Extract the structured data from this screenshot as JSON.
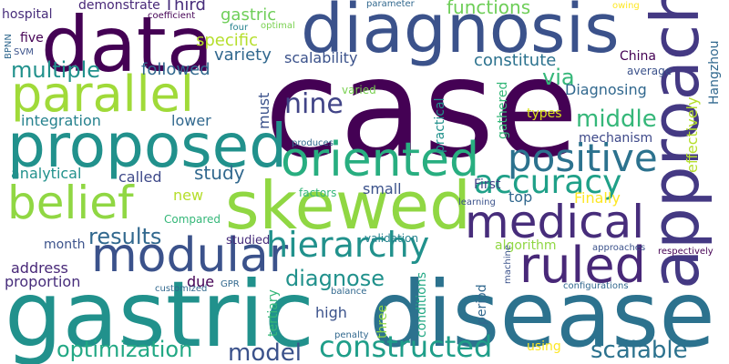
{
  "palette": {
    "purple": "#440154",
    "indigo": "#3b528b",
    "blue": "#31688e",
    "teal": "#21918c",
    "green": "#35b779",
    "lime": "#90d743",
    "yellow": "#fde725"
  },
  "words": [
    {
      "text": "case",
      "color": "#440154"
    },
    {
      "text": "gastric",
      "color": "#21918c"
    },
    {
      "text": "disease",
      "color": "#2c728e"
    },
    {
      "text": "diagnosis",
      "color": "#3b528b"
    },
    {
      "text": "data",
      "color": "#440154"
    },
    {
      "text": "approach",
      "color": "#443983"
    },
    {
      "text": "skewed",
      "color": "#90d743"
    },
    {
      "text": "proposed",
      "color": "#21918c"
    },
    {
      "text": "parallel",
      "color": "#a0da39"
    },
    {
      "text": "oriented",
      "color": "#28ae80"
    },
    {
      "text": "medical",
      "color": "#472d7b"
    },
    {
      "text": "modular",
      "color": "#3b528b"
    },
    {
      "text": "belief",
      "color": "#90d743"
    },
    {
      "text": "ruled",
      "color": "#482878"
    },
    {
      "text": "positive",
      "color": "#2c728e"
    },
    {
      "text": "accuracy",
      "color": "#1fa088"
    },
    {
      "text": "hierarchy",
      "color": "#21918c"
    },
    {
      "text": "constructed",
      "color": "#1f9e89"
    },
    {
      "text": "optimization",
      "color": "#22a884"
    },
    {
      "text": "model",
      "color": "#3b528b"
    },
    {
      "text": "scalable",
      "color": "#2c728e"
    },
    {
      "text": "results",
      "color": "#31688e"
    },
    {
      "text": "diagnose",
      "color": "#21918c"
    },
    {
      "text": "multiple",
      "color": "#21918c"
    },
    {
      "text": "specific",
      "color": "#b5de2b"
    },
    {
      "text": "study",
      "color": "#31688e"
    },
    {
      "text": "via",
      "color": "#35b779"
    },
    {
      "text": "middle",
      "color": "#35b779"
    },
    {
      "text": "nine",
      "color": "#414487"
    },
    {
      "text": "constitute",
      "color": "#2c728e"
    },
    {
      "text": "Diagnosing",
      "color": "#31688e"
    },
    {
      "text": "effectively",
      "color": "#b5de2b"
    },
    {
      "text": "Hangzhou",
      "color": "#31688e"
    },
    {
      "text": "variety",
      "color": "#31688e"
    },
    {
      "text": "scalability",
      "color": "#3b528b"
    },
    {
      "text": "followed",
      "color": "#31688e"
    },
    {
      "text": "gastric",
      "color": "#6ece58"
    },
    {
      "text": "functions",
      "color": "#6ece58"
    },
    {
      "text": "demonstrate",
      "color": "#482878"
    },
    {
      "text": "Third",
      "color": "#472d7b"
    },
    {
      "text": "hospital",
      "color": "#472d7b"
    },
    {
      "text": "five",
      "color": "#440154"
    },
    {
      "text": "must",
      "color": "#3b528b"
    },
    {
      "text": "lower",
      "color": "#31688e"
    },
    {
      "text": "integration",
      "color": "#26828e"
    },
    {
      "text": "analytical",
      "color": "#21918c"
    },
    {
      "text": "called",
      "color": "#3e4989"
    },
    {
      "text": "new",
      "color": "#b5de2b"
    },
    {
      "text": "factors",
      "color": "#35b779"
    },
    {
      "text": "small",
      "color": "#3b528b"
    },
    {
      "text": "First",
      "color": "#414487"
    },
    {
      "text": "top",
      "color": "#31688e"
    },
    {
      "text": "Finally",
      "color": "#fde725"
    },
    {
      "text": "practical",
      "color": "#21918c"
    },
    {
      "text": "gathered",
      "color": "#35b779"
    },
    {
      "text": "types",
      "color": "#d8e219"
    },
    {
      "text": "mechanism",
      "color": "#3e4989"
    },
    {
      "text": "China",
      "color": "#440154"
    },
    {
      "text": "average",
      "color": "#3b528b"
    },
    {
      "text": "varied",
      "color": "#7ad151"
    },
    {
      "text": "produces",
      "color": "#31688e"
    },
    {
      "text": "Compared",
      "color": "#35b779"
    },
    {
      "text": "month",
      "color": "#3b528b"
    },
    {
      "text": "studied",
      "color": "#472d7b"
    },
    {
      "text": "validation",
      "color": "#26828e"
    },
    {
      "text": "address",
      "color": "#482878"
    },
    {
      "text": "proportion",
      "color": "#472d7b"
    },
    {
      "text": "due",
      "color": "#440154"
    },
    {
      "text": "customized",
      "color": "#31688e"
    },
    {
      "text": "GPR",
      "color": "#31688e"
    },
    {
      "text": "tertiary",
      "color": "#35b779"
    },
    {
      "text": "high",
      "color": "#3b528b"
    },
    {
      "text": "three",
      "color": "#90d743"
    },
    {
      "text": "balance",
      "color": "#31688e"
    },
    {
      "text": "penalty",
      "color": "#31688e"
    },
    {
      "text": "conditions",
      "color": "#22a884"
    },
    {
      "text": "period",
      "color": "#31688e"
    },
    {
      "text": "using",
      "color": "#fde725"
    },
    {
      "text": "configurations",
      "color": "#31688e"
    },
    {
      "text": "algorithm",
      "color": "#90d743"
    },
    {
      "text": "approaches",
      "color": "#3b528b"
    },
    {
      "text": "respectively",
      "color": "#440154"
    },
    {
      "text": "learning",
      "color": "#3b528b"
    },
    {
      "text": "machine",
      "color": "#3b528b"
    },
    {
      "text": "parameter",
      "color": "#31688e"
    },
    {
      "text": "coefficient",
      "color": "#440154"
    },
    {
      "text": "optimal",
      "color": "#7ad151"
    },
    {
      "text": "four",
      "color": "#26828e"
    },
    {
      "text": "BPNN",
      "color": "#31688e"
    },
    {
      "text": "SVM",
      "color": "#3b528b"
    },
    {
      "text": "owing",
      "color": "#fde725"
    }
  ]
}
